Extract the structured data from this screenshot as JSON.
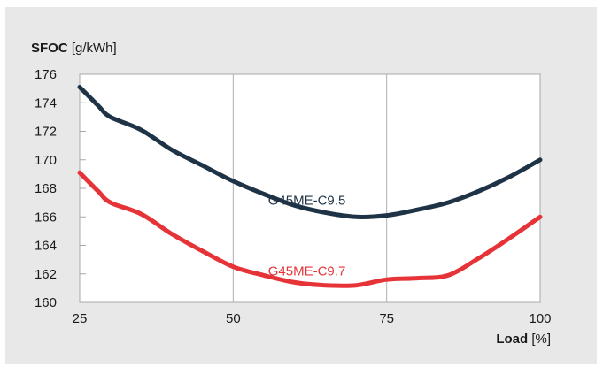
{
  "chart_data": {
    "type": "line",
    "ylabel": {
      "bold": "SFOC",
      "unit": "[g/kWh]"
    },
    "xlabel": {
      "bold": "Load",
      "unit": "[%]"
    },
    "xlim": [
      25,
      100
    ],
    "ylim": [
      160,
      176
    ],
    "x_ticks": [
      "25",
      "50",
      "75",
      "100"
    ],
    "y_ticks": [
      "160",
      "162",
      "164",
      "166",
      "168",
      "170",
      "172",
      "174",
      "176"
    ],
    "grid": {
      "vertical": true,
      "horizontal": false
    },
    "series": [
      {
        "name": "G45ME-C9.5",
        "color": "#1f3346",
        "points": [
          [
            25,
            175.1
          ],
          [
            28,
            173.8
          ],
          [
            30,
            173.0
          ],
          [
            35,
            172.1
          ],
          [
            40,
            170.7
          ],
          [
            45,
            169.6
          ],
          [
            50,
            168.5
          ],
          [
            55,
            167.6
          ],
          [
            60,
            166.8
          ],
          [
            65,
            166.3
          ],
          [
            70,
            166.0
          ],
          [
            75,
            166.1
          ],
          [
            80,
            166.5
          ],
          [
            85,
            167.0
          ],
          [
            90,
            167.8
          ],
          [
            95,
            168.8
          ],
          [
            100,
            170.0
          ]
        ]
      },
      {
        "name": "G45ME-C9.7",
        "color": "#e63338",
        "points": [
          [
            25,
            169.1
          ],
          [
            28,
            167.8
          ],
          [
            30,
            167.0
          ],
          [
            35,
            166.2
          ],
          [
            40,
            164.8
          ],
          [
            45,
            163.6
          ],
          [
            50,
            162.5
          ],
          [
            55,
            161.9
          ],
          [
            60,
            161.4
          ],
          [
            65,
            161.2
          ],
          [
            70,
            161.2
          ],
          [
            75,
            161.6
          ],
          [
            80,
            161.7
          ],
          [
            85,
            161.9
          ],
          [
            90,
            163.1
          ],
          [
            95,
            164.5
          ],
          [
            100,
            166.0
          ]
        ]
      }
    ]
  }
}
